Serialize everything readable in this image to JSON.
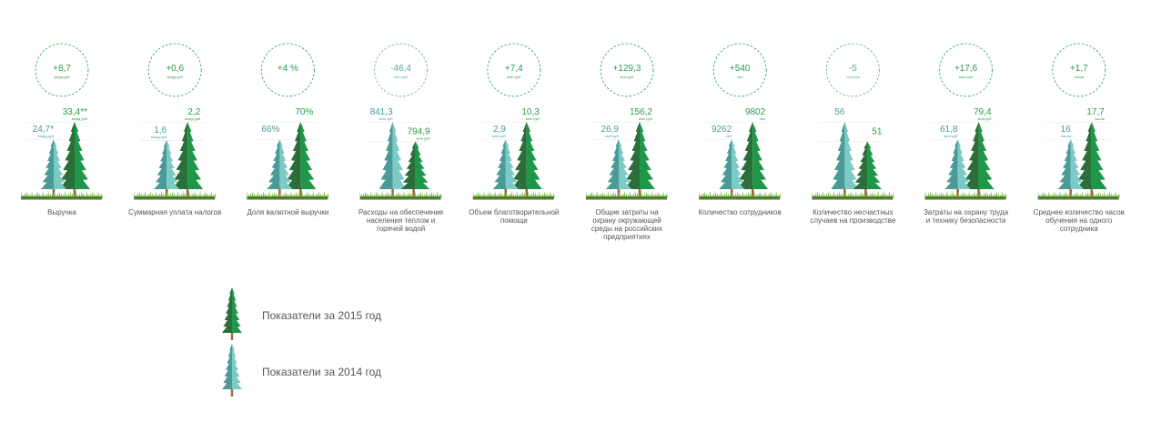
{
  "chart_data": {
    "type": "bar",
    "colors": {
      "y2015": "#1e9748",
      "y2015_dark": "#2c6e3a",
      "y2014": "#7ccac6",
      "y2014_dark": "#4a9a98",
      "delta": "#2a9b4a",
      "delta_neg": "#5aa8a4",
      "trunk": "#9a6a3c",
      "ground": "#4f7e2c",
      "grass": "#74b83e",
      "label": "#555555"
    },
    "indicators": [
      {
        "label": "Выручка",
        "delta": "+8,7",
        "delta_unit": "млрд руб",
        "v2014": "24,7",
        "v2014_unit": "млрд руб",
        "v2014_mark": "*",
        "v2015": "33,4",
        "v2015_unit": "млрд руб",
        "v2015_mark": "**",
        "h2014": 0.74,
        "h2015": 1.0
      },
      {
        "label": "Суммарная уплата налогов",
        "delta": "+0,6",
        "delta_unit": "млрд руб",
        "v2014": "1,6",
        "v2014_unit": "млрд руб",
        "v2015": "2,2",
        "v2015_unit": "млрд руб",
        "h2014": 0.73,
        "h2015": 1.0
      },
      {
        "label": "Доля валютной выручки",
        "delta": "+4 %",
        "delta_unit": "",
        "v2014": "66%",
        "v2014_unit": "",
        "v2015": "70%",
        "v2015_unit": "",
        "h2014": 0.74,
        "h2015": 1.0
      },
      {
        "label": "Расходы на обеспечение населения теплом и горячей водой",
        "delta": "-46,4",
        "delta_unit": "млн руб",
        "v2014": "841,3",
        "v2014_unit": "млн руб",
        "v2015": "794,9",
        "v2015_unit": "млн руб",
        "h2014": 1.0,
        "h2015": 0.71
      },
      {
        "label": "Объем благотворительной помощи",
        "delta": "+7,4",
        "delta_unit": "млн руб",
        "v2014": "2,9",
        "v2014_unit": "млн руб",
        "v2015": "10,3",
        "v2015_unit": "млн руб",
        "h2014": 0.74,
        "h2015": 1.0
      },
      {
        "label": "Общие затраты на охрану окружающей среды на российских предприятиях",
        "delta": "+129,3",
        "delta_unit": "млн руб",
        "v2014": "26,9",
        "v2014_unit": "млн руб",
        "v2015": "156,2",
        "v2015_unit": "млн руб",
        "h2014": 0.74,
        "h2015": 1.0
      },
      {
        "label": "Количество сотрудников",
        "delta": "+540",
        "delta_unit": "чел",
        "v2014": "9262",
        "v2014_unit": "чел",
        "v2015": "9802",
        "v2015_unit": "чел",
        "h2014": 0.74,
        "h2015": 1.0
      },
      {
        "label": "Количество несчастных случаев на производстве",
        "delta": "-5",
        "delta_unit": "случаев",
        "v2014": "56",
        "v2014_unit": "",
        "v2015": "51",
        "v2015_unit": "",
        "h2014": 1.0,
        "h2015": 0.71
      },
      {
        "label": "Затраты на охрану труда и технику безопасности",
        "delta": "+17,6",
        "delta_unit": "млн руб",
        "v2014": "61,8",
        "v2014_unit": "млн руб",
        "v2015": "79,4",
        "v2015_unit": "млн руб",
        "h2014": 0.74,
        "h2015": 1.0
      },
      {
        "label": "Среднее количество часов обучения на одного сотрудника",
        "delta": "+1,7",
        "delta_unit": "часов",
        "v2014": "16",
        "v2014_unit": "часов",
        "v2015": "17,7",
        "v2015_unit": "часов",
        "h2014": 0.74,
        "h2015": 1.0
      }
    ],
    "legend": [
      {
        "series": "2015",
        "label": "Показатели за 2015 год"
      },
      {
        "series": "2014",
        "label": "Показатели за 2014 год"
      }
    ]
  }
}
